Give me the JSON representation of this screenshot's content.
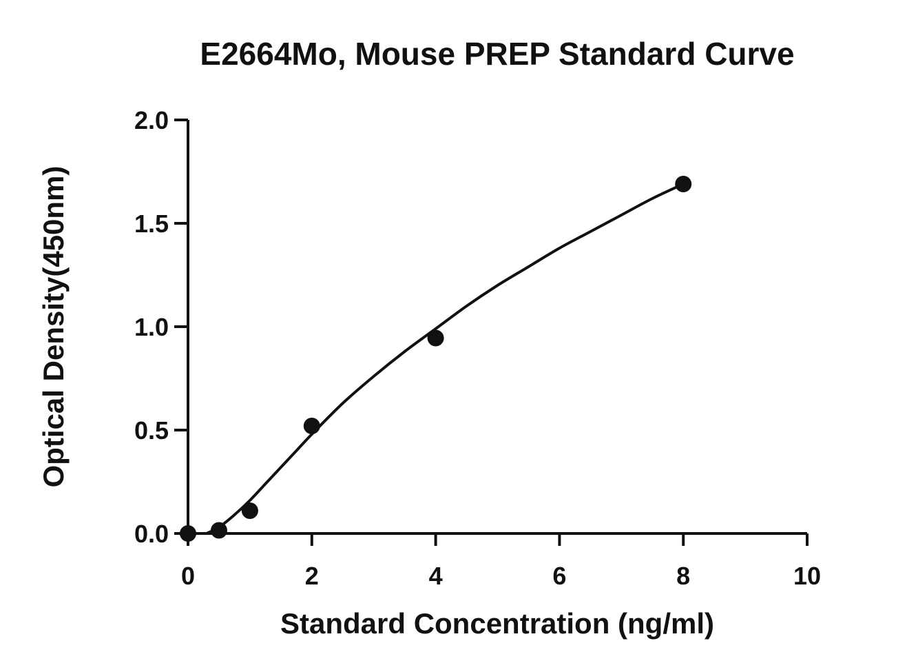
{
  "chart_data": {
    "type": "scatter",
    "title": "E2664Mo, Mouse PREP Standard Curve",
    "xlabel": "Standard Concentration (ng/ml)",
    "ylabel": "Optical Density(450nm)",
    "xlim": [
      0,
      10
    ],
    "ylim": [
      0,
      2.0
    ],
    "xticks": [
      0,
      2,
      4,
      6,
      8,
      10
    ],
    "yticks": [
      0.0,
      0.5,
      1.0,
      1.5,
      2.0
    ],
    "xtick_labels": [
      "0",
      "2",
      "4",
      "6",
      "8",
      "10"
    ],
    "ytick_labels": [
      "0.0",
      "0.5",
      "1.0",
      "1.5",
      "2.0"
    ],
    "grid": false,
    "legend": "none",
    "series": [
      {
        "x": [
          0,
          0.5,
          1,
          2,
          4,
          8
        ],
        "y": [
          0.0,
          0.015,
          0.11,
          0.52,
          0.945,
          1.69
        ],
        "color": "#111111"
      }
    ],
    "fit_curve": {
      "type": "line",
      "x": [
        0.3,
        0.5,
        0.75,
        1,
        1.25,
        1.5,
        1.75,
        2,
        2.5,
        3,
        3.5,
        4,
        4.5,
        5,
        5.5,
        6,
        6.5,
        7,
        7.5,
        8
      ],
      "y": [
        0.0,
        0.03,
        0.09,
        0.16,
        0.24,
        0.32,
        0.4,
        0.48,
        0.63,
        0.76,
        0.88,
        0.99,
        1.1,
        1.2,
        1.29,
        1.38,
        1.46,
        1.54,
        1.62,
        1.69
      ],
      "color": "#111111"
    }
  }
}
